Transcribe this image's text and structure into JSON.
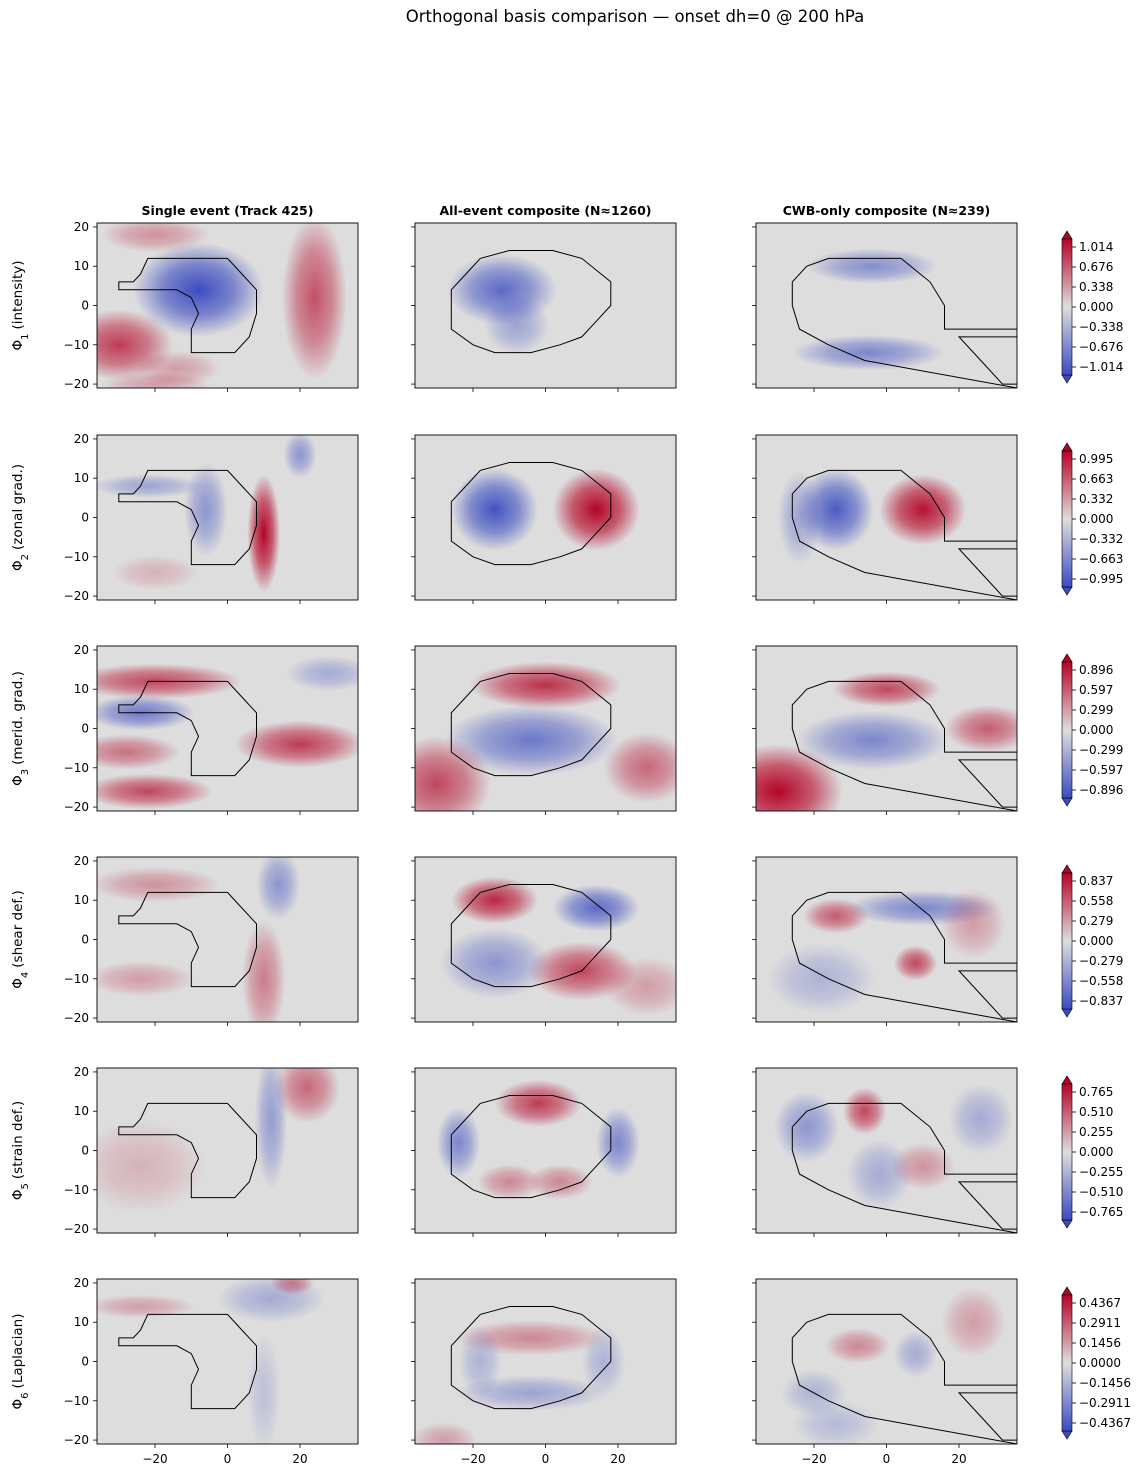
{
  "figure": {
    "title": "Orthogonal basis comparison — onset dh=0 @ 200 hPa",
    "columns": [
      "Single event (Track 425)",
      "All-event composite (N≈1260)",
      "CWB-only composite (N≈239)"
    ],
    "rows": [
      {
        "symbol": "Φ",
        "sub": "1",
        "name": "(intensity)",
        "colorbar_ticks": [
          "1.014",
          "0.676",
          "0.338",
          "0.000",
          "−0.338",
          "−0.676",
          "−1.014"
        ]
      },
      {
        "symbol": "Φ",
        "sub": "2",
        "name": "(zonal grad.)",
        "colorbar_ticks": [
          "0.995",
          "0.663",
          "0.332",
          "0.000",
          "−0.332",
          "−0.663",
          "−0.995"
        ]
      },
      {
        "symbol": "Φ",
        "sub": "3",
        "name": "(merid. grad.)",
        "colorbar_ticks": [
          "0.896",
          "0.597",
          "0.299",
          "0.000",
          "−0.299",
          "−0.597",
          "−0.896"
        ]
      },
      {
        "symbol": "Φ",
        "sub": "4",
        "name": "(shear def.)",
        "colorbar_ticks": [
          "0.837",
          "0.558",
          "0.279",
          "0.000",
          "−0.279",
          "−0.558",
          "−0.837"
        ]
      },
      {
        "symbol": "Φ",
        "sub": "5",
        "name": "(strain def.)",
        "colorbar_ticks": [
          "0.765",
          "0.510",
          "0.255",
          "0.000",
          "−0.255",
          "−0.510",
          "−0.765"
        ]
      },
      {
        "symbol": "Φ",
        "sub": "6",
        "name": "(Laplacian)",
        "colorbar_ticks": [
          "0.4367",
          "0.2911",
          "0.1456",
          "0.0000",
          "−0.1456",
          "−0.2911",
          "−0.4367"
        ]
      }
    ],
    "x_ticks": [
      "−20",
      "0",
      "20"
    ],
    "y_ticks": [
      "20",
      "10",
      "0",
      "−10",
      "−20"
    ]
  },
  "chart_data": {
    "type": "heatmap",
    "colormap": "coolwarm",
    "colors": {
      "neg": "#3b4cc0",
      "mid": "#dddddd",
      "pos": "#b40426"
    },
    "xlim": [
      -36,
      36
    ],
    "ylim": [
      -21,
      21
    ],
    "x_tick_values": [
      -20,
      0,
      20
    ],
    "y_tick_values": [
      20,
      10,
      0,
      -10,
      -20
    ],
    "colorbar_ranges": [
      1.014,
      0.995,
      0.896,
      0.837,
      0.765,
      0.4367
    ],
    "contour_outlines": {
      "single_event": [
        [
          -30,
          4
        ],
        [
          -30,
          6
        ],
        [
          -26,
          6
        ],
        [
          -24,
          8
        ],
        [
          -22,
          12
        ],
        [
          -10,
          12
        ],
        [
          0,
          12
        ],
        [
          4,
          8
        ],
        [
          8,
          4
        ],
        [
          8,
          -2
        ],
        [
          6,
          -8
        ],
        [
          2,
          -12
        ],
        [
          -10,
          -12
        ],
        [
          -10,
          -6
        ],
        [
          -8,
          -2
        ],
        [
          -10,
          2
        ],
        [
          -14,
          4
        ]
      ],
      "all_event": [
        [
          -26,
          -6
        ],
        [
          -26,
          4
        ],
        [
          -22,
          8
        ],
        [
          -18,
          12
        ],
        [
          -10,
          14
        ],
        [
          2,
          14
        ],
        [
          10,
          12
        ],
        [
          18,
          6
        ],
        [
          18,
          0
        ],
        [
          14,
          -4
        ],
        [
          10,
          -8
        ],
        [
          4,
          -10
        ],
        [
          -4,
          -12
        ],
        [
          -14,
          -12
        ],
        [
          -20,
          -10
        ]
      ],
      "cwb_only": [
        [
          -26,
          0
        ],
        [
          -26,
          6
        ],
        [
          -22,
          10
        ],
        [
          -16,
          12
        ],
        [
          -8,
          12
        ],
        [
          4,
          12
        ],
        [
          12,
          6
        ],
        [
          16,
          0
        ],
        [
          16,
          -6
        ],
        [
          36,
          -6
        ],
        [
          36,
          -8
        ],
        [
          20,
          -8
        ],
        [
          26,
          -14
        ],
        [
          32,
          -20
        ],
        [
          36,
          -20
        ],
        [
          36,
          -21
        ],
        [
          -6,
          -14
        ],
        [
          -16,
          -10
        ],
        [
          -24,
          -6
        ]
      ]
    },
    "panels": [
      [
        {
          "blobs": [
            [
              -8,
              4,
              12,
              8,
              -1.0
            ],
            [
              -30,
              -10,
              10,
              6,
              0.75
            ],
            [
              -14,
              -16,
              8,
              3,
              0.3
            ],
            [
              24,
              2,
              6,
              14,
              0.65
            ],
            [
              -20,
              18,
              10,
              3,
              0.35
            ],
            [
              -20,
              -20,
              10,
              2,
              0.3
            ]
          ]
        },
        {
          "blobs": [
            [
              -12,
              4,
              10,
              6,
              -0.8
            ],
            [
              -8,
              -5,
              6,
              5,
              -0.4
            ]
          ]
        },
        {
          "blobs": [
            [
              -4,
              10,
              12,
              3,
              -0.55
            ],
            [
              -5,
              -12,
              14,
              3,
              -0.6
            ]
          ]
        }
      ],
      [
        {
          "blobs": [
            [
              10,
              -4,
              3,
              10,
              1.0
            ],
            [
              -6,
              2,
              4,
              8,
              -0.5
            ],
            [
              -22,
              8,
              10,
              2,
              -0.4
            ],
            [
              20,
              16,
              3,
              4,
              -0.5
            ],
            [
              -20,
              -14,
              8,
              3,
              0.2
            ]
          ]
        },
        {
          "blobs": [
            [
              -14,
              2,
              8,
              7,
              -0.95
            ],
            [
              14,
              2,
              8,
              7,
              1.0
            ]
          ]
        },
        {
          "blobs": [
            [
              -14,
              2,
              7,
              7,
              -0.9
            ],
            [
              10,
              2,
              8,
              6,
              0.95
            ],
            [
              -24,
              0,
              4,
              8,
              -0.4
            ]
          ]
        }
      ],
      [
        {
          "blobs": [
            [
              -20,
              12,
              16,
              3,
              0.7
            ],
            [
              -24,
              4,
              10,
              3,
              -0.7
            ],
            [
              -22,
              -16,
              12,
              3,
              0.7
            ],
            [
              20,
              -4,
              12,
              4,
              0.75
            ],
            [
              -28,
              -6,
              10,
              3,
              0.5
            ],
            [
              28,
              14,
              8,
              3,
              -0.35
            ]
          ]
        },
        {
          "blobs": [
            [
              -4,
              -3,
              16,
              6,
              -0.7
            ],
            [
              0,
              11,
              14,
              4,
              0.8
            ],
            [
              -30,
              -14,
              10,
              8,
              0.7
            ],
            [
              28,
              -10,
              8,
              6,
              0.55
            ]
          ]
        },
        {
          "blobs": [
            [
              -4,
              -3,
              14,
              5,
              -0.6
            ],
            [
              -30,
              -16,
              12,
              8,
              1.0
            ],
            [
              0,
              10,
              10,
              3,
              0.7
            ],
            [
              28,
              0,
              8,
              4,
              0.6
            ]
          ]
        }
      ],
      [
        {
          "blobs": [
            [
              14,
              14,
              4,
              6,
              -0.5
            ],
            [
              -20,
              14,
              12,
              3,
              0.35
            ],
            [
              10,
              -10,
              4,
              10,
              0.45
            ],
            [
              -24,
              -10,
              10,
              3,
              0.3
            ]
          ]
        },
        {
          "blobs": [
            [
              -14,
              10,
              8,
              4,
              0.85
            ],
            [
              10,
              -8,
              10,
              5,
              0.7
            ],
            [
              14,
              8,
              8,
              4,
              -0.8
            ],
            [
              -14,
              -6,
              10,
              6,
              -0.5
            ],
            [
              28,
              -12,
              8,
              5,
              0.3
            ]
          ]
        },
        {
          "blobs": [
            [
              -14,
              6,
              6,
              3,
              0.6
            ],
            [
              8,
              -6,
              4,
              3,
              0.7
            ],
            [
              10,
              8,
              14,
              3,
              -0.6
            ],
            [
              -18,
              -10,
              10,
              6,
              -0.3
            ],
            [
              24,
              4,
              6,
              6,
              0.3
            ]
          ]
        }
      ],
      [
        {
          "blobs": [
            [
              22,
              16,
              6,
              6,
              0.55
            ],
            [
              12,
              8,
              3,
              12,
              -0.45
            ],
            [
              -24,
              -4,
              12,
              8,
              0.2
            ]
          ]
        },
        {
          "blobs": [
            [
              -2,
              12,
              8,
              4,
              0.75
            ],
            [
              -24,
              2,
              4,
              6,
              -0.6
            ],
            [
              20,
              2,
              4,
              6,
              -0.6
            ],
            [
              -10,
              -8,
              6,
              3,
              0.4
            ],
            [
              4,
              -8,
              6,
              3,
              0.4
            ]
          ]
        },
        {
          "blobs": [
            [
              -6,
              10,
              4,
              4,
              0.7
            ],
            [
              -22,
              6,
              6,
              6,
              -0.5
            ],
            [
              10,
              -4,
              6,
              4,
              0.35
            ],
            [
              26,
              8,
              6,
              6,
              -0.35
            ],
            [
              -2,
              -6,
              6,
              6,
              -0.35
            ]
          ]
        }
      ],
      [
        {
          "blobs": [
            [
              12,
              16,
              10,
              4,
              -0.35
            ],
            [
              18,
              20,
              4,
              2,
              0.45
            ],
            [
              -24,
              14,
              10,
              2,
              0.3
            ],
            [
              10,
              -8,
              3,
              10,
              -0.2
            ]
          ]
        },
        {
          "blobs": [
            [
              -4,
              6,
              14,
              3,
              0.4
            ],
            [
              -4,
              -8,
              14,
              3,
              -0.4
            ],
            [
              -18,
              0,
              4,
              6,
              -0.3
            ],
            [
              16,
              0,
              4,
              6,
              -0.3
            ],
            [
              -28,
              -20,
              6,
              3,
              0.3
            ]
          ]
        },
        {
          "blobs": [
            [
              -8,
              4,
              6,
              3,
              0.4
            ],
            [
              8,
              2,
              4,
              4,
              -0.35
            ],
            [
              -20,
              -8,
              6,
              4,
              -0.3
            ],
            [
              24,
              10,
              6,
              6,
              0.3
            ],
            [
              -14,
              -16,
              8,
              4,
              -0.25
            ]
          ]
        }
      ]
    ]
  }
}
